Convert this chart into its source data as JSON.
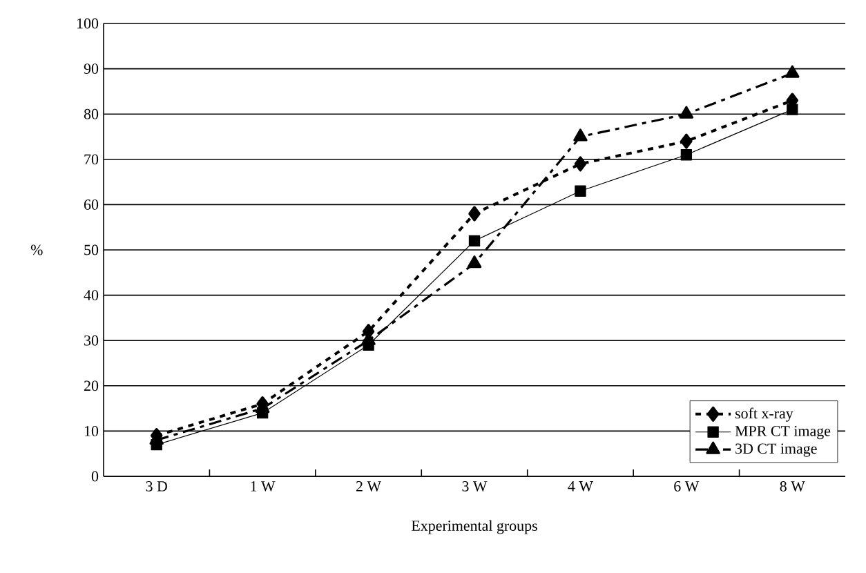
{
  "chart_data": {
    "type": "line",
    "xlabel": "Experimental groups",
    "ylabel": "%",
    "categories": [
      "3 D",
      "1 W",
      "2 W",
      "3 W",
      "4 W",
      "6 W",
      "8 W"
    ],
    "series": [
      {
        "name": "soft x-ray",
        "color": "#000000",
        "marker": "diamond",
        "line_style": "dotted",
        "values": [
          9,
          16,
          32,
          58,
          69,
          74,
          83
        ]
      },
      {
        "name": "MPR CT image",
        "color": "#000000",
        "marker": "square",
        "line_style": "solid",
        "values": [
          7,
          14,
          29,
          52,
          63,
          71,
          81
        ]
      },
      {
        "name": "3D CT image",
        "color": "#000000",
        "marker": "triangle",
        "line_style": "dashed",
        "values": [
          8,
          15,
          30,
          47,
          75,
          80,
          89
        ]
      }
    ],
    "ylim": [
      0,
      100
    ],
    "yticks": [
      0,
      10,
      20,
      30,
      40,
      50,
      60,
      70,
      80,
      90,
      100
    ],
    "grid": "y",
    "legend": "bottom right"
  }
}
